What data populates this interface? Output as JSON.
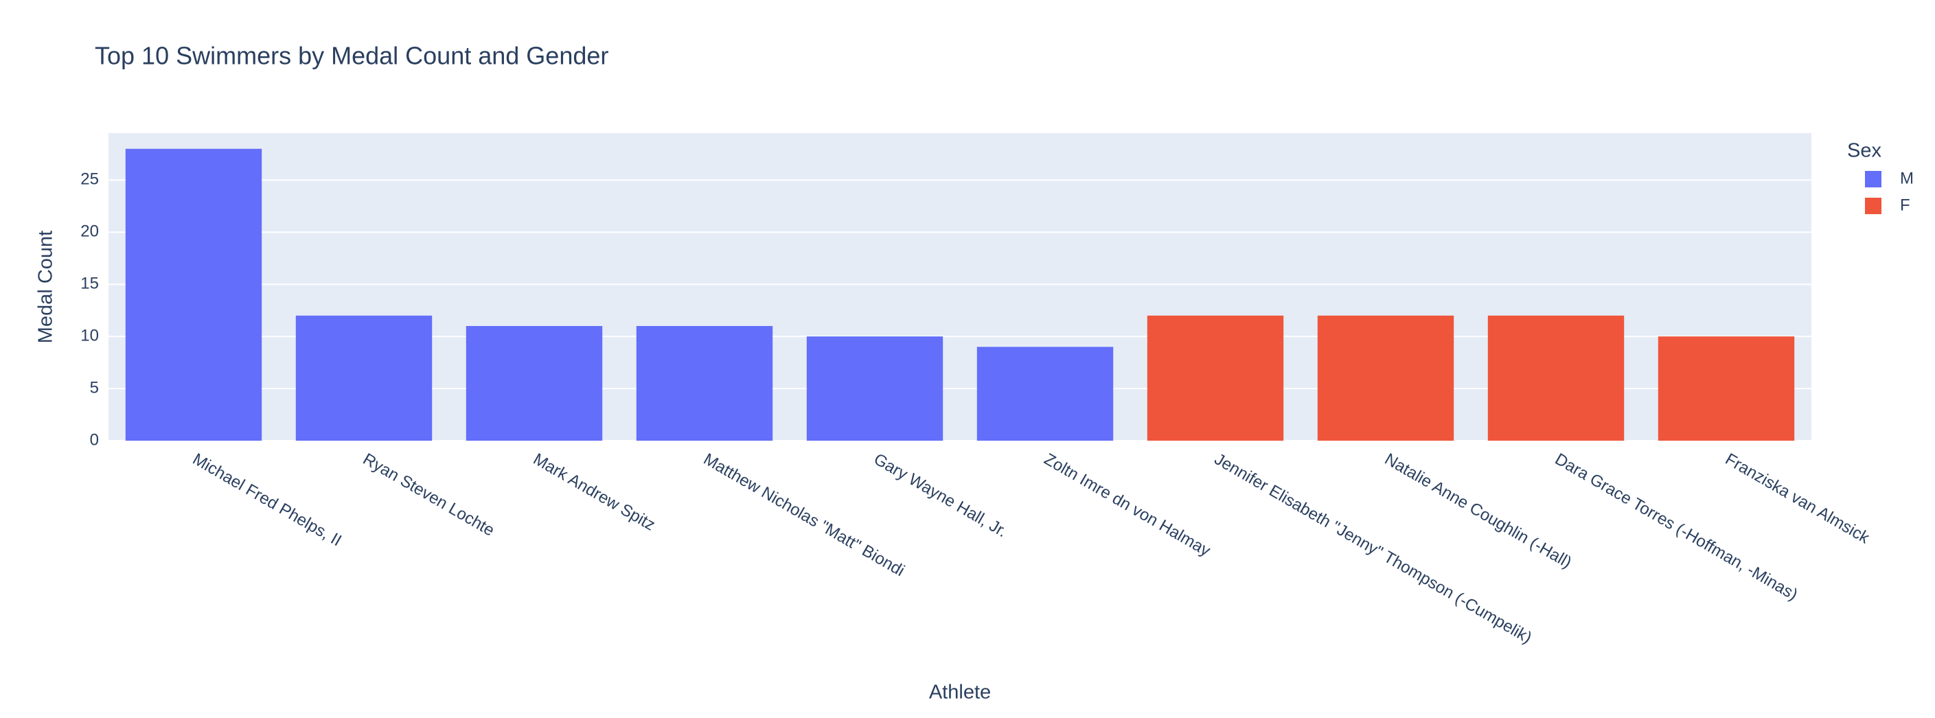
{
  "chart_data": {
    "type": "bar",
    "title": "Top 10 Swimmers by Medal Count and Gender",
    "x_label": "Athlete",
    "y_label": "Medal Count",
    "legend_title": "Sex",
    "legend_position": "right",
    "grid": true,
    "categories": [
      "Michael Fred Phelps, II",
      "Ryan Steven Lochte",
      "Mark Andrew Spitz",
      "Matthew Nicholas \"Matt\" Biondi",
      "Gary Wayne Hall, Jr.",
      "Zoltn Imre dn von Halmay",
      "Jennifer Elisabeth \"Jenny\" Thompson (-Cumpelik)",
      "Natalie Anne Coughlin (-Hall)",
      "Dara Grace Torres (-Hoffman, -Minas)",
      "Franziska van Almsick"
    ],
    "series": [
      {
        "name": "M",
        "color": "#636efa",
        "values": [
          28,
          12,
          11,
          11,
          10,
          9,
          null,
          null,
          null,
          null
        ]
      },
      {
        "name": "F",
        "color": "#ef553b",
        "values": [
          null,
          null,
          null,
          null,
          null,
          null,
          12,
          12,
          12,
          10
        ]
      }
    ],
    "ylim": [
      0,
      29.5
    ],
    "yticks": [
      0,
      5,
      10,
      15,
      20,
      25
    ]
  }
}
